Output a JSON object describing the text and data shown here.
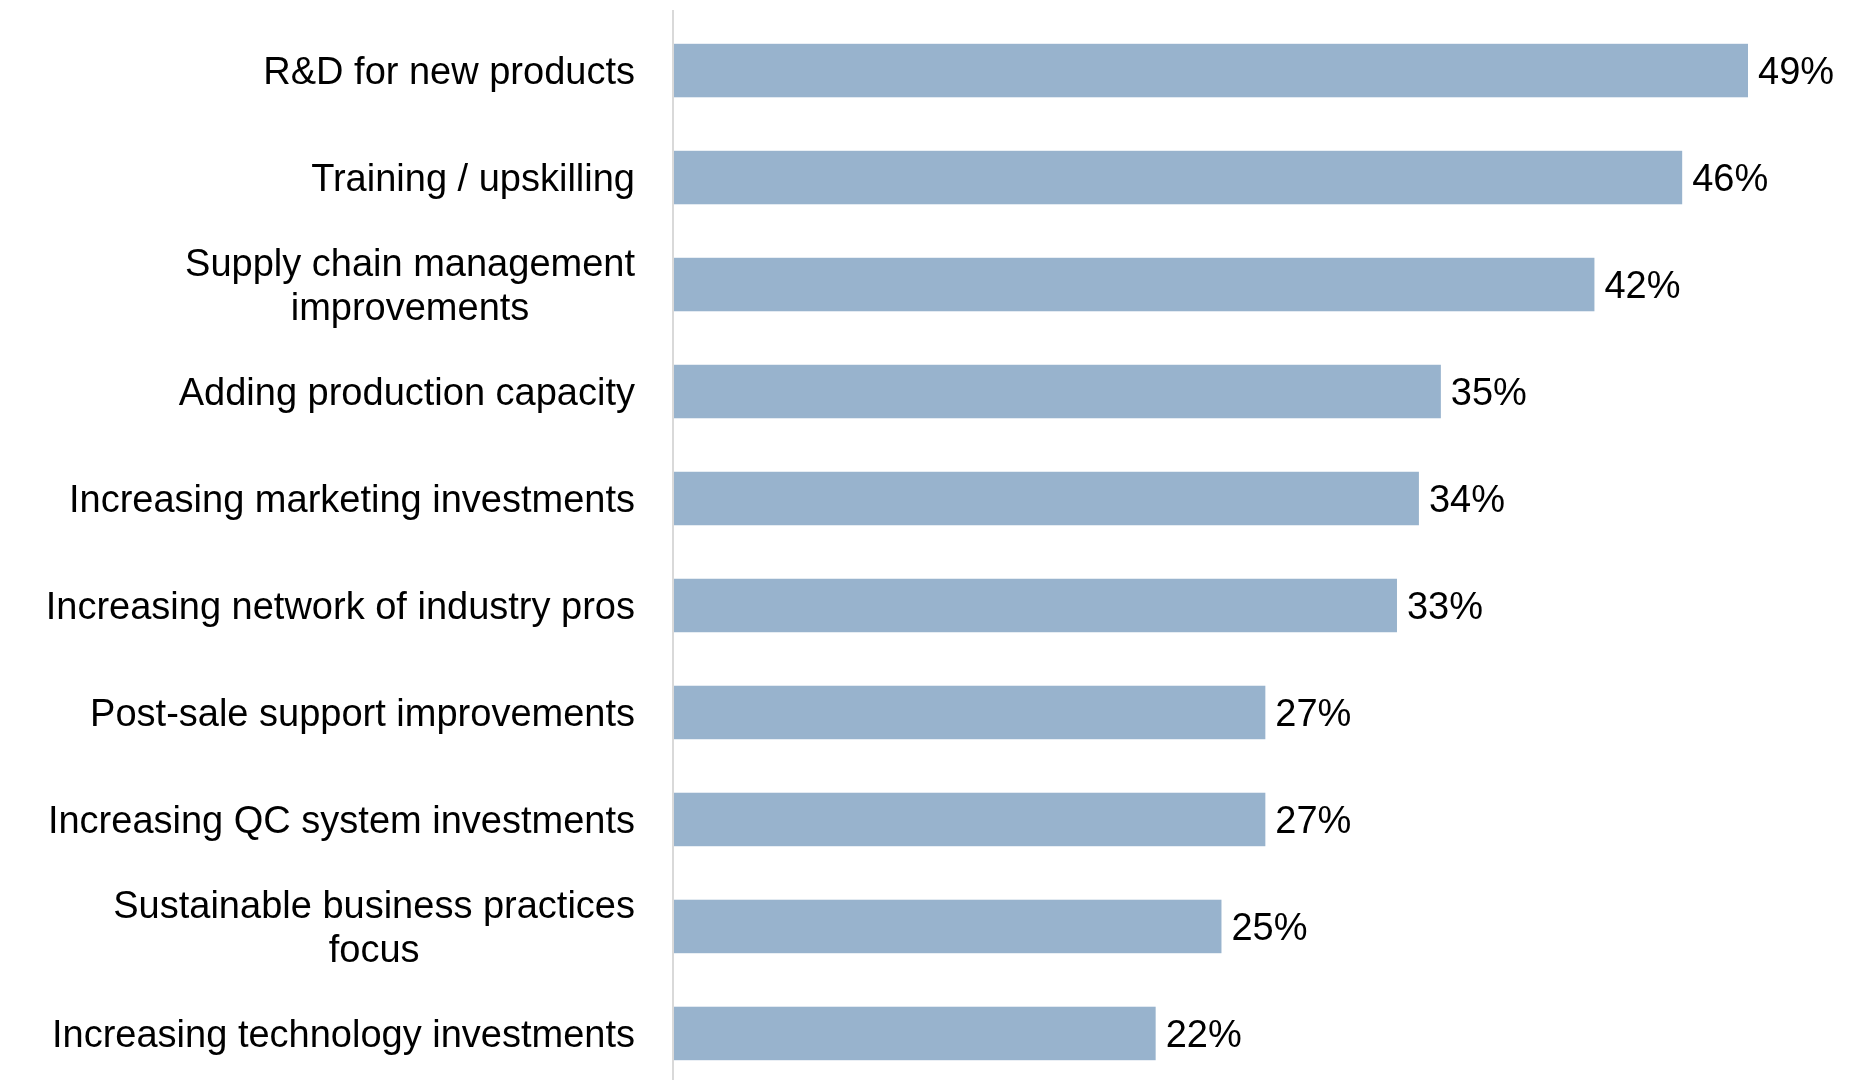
{
  "chart_data": {
    "type": "bar",
    "orientation": "horizontal",
    "categories": [
      "R&D for new products",
      "Training / upskilling",
      "Supply chain management improvements",
      "Adding production capacity",
      "Increasing marketing investments",
      "Increasing network of industry pros",
      "Post-sale support improvements",
      "Increasing QC system investments",
      "Sustainable business practices focus",
      "Increasing technology investments"
    ],
    "values": [
      49,
      46,
      42,
      35,
      34,
      33,
      27,
      27,
      25,
      22
    ],
    "value_labels": [
      "49%",
      "46%",
      "42%",
      "35%",
      "34%",
      "33%",
      "27%",
      "27%",
      "25%",
      "22%"
    ],
    "color": "#98b3cd"
  }
}
